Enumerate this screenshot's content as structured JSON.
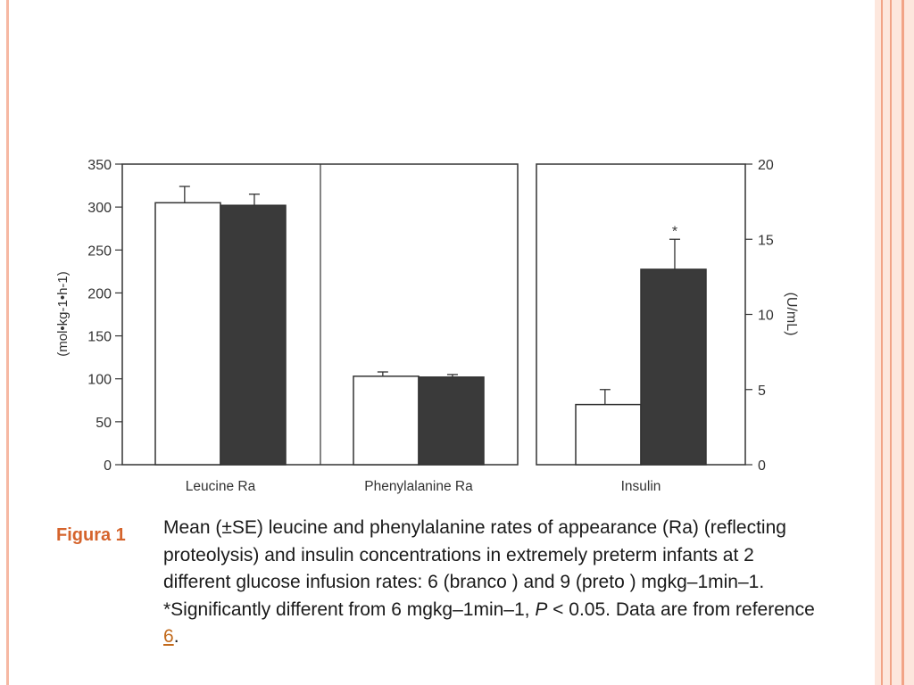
{
  "chart_data": {
    "type": "bar",
    "series": [
      {
        "name": "branco",
        "color": "#ffffff"
      },
      {
        "name": "preto",
        "color": "#3a3a3a"
      }
    ],
    "panels": [
      {
        "axis": "left",
        "ylabel": "(mol•kg-1•h-1)",
        "ylim": [
          0,
          350
        ],
        "yticks": [
          0,
          50,
          100,
          150,
          200,
          250,
          300,
          350
        ],
        "categories": [
          {
            "label": "Leucine Ra",
            "values": [
              305,
              302
            ],
            "errors": [
              19,
              13
            ],
            "annotations": [
              "",
              ""
            ]
          },
          {
            "label": "Phenylalanine Ra",
            "values": [
              103,
              102
            ],
            "errors": [
              5,
              3
            ],
            "annotations": [
              "",
              ""
            ]
          }
        ]
      },
      {
        "axis": "right",
        "ylabel": "(U/mL)",
        "ylim": [
          0,
          20
        ],
        "yticks": [
          0,
          5,
          10,
          15,
          20
        ],
        "categories": [
          {
            "label": "Insulin",
            "values": [
              4,
              13
            ],
            "errors": [
              1,
              2
            ],
            "annotations": [
              "",
              "*"
            ]
          }
        ]
      }
    ]
  },
  "figure": {
    "label": "Figura 1",
    "caption_pre": "Mean (±SE) leucine and phenylalanine rates of appearance (Ra) (reflecting proteolysis) and insulin concentrations in extremely preterm infants at 2 different glucose infusion rates: 6 (branco ) and 9 (preto ) mgkg–1min–1. *Significantly different from 6 mgkg–1min–1, ",
    "caption_p": "P",
    "caption_mid": " < 0.05. Data are from reference ",
    "caption_ref": "6",
    "caption_end": "."
  }
}
